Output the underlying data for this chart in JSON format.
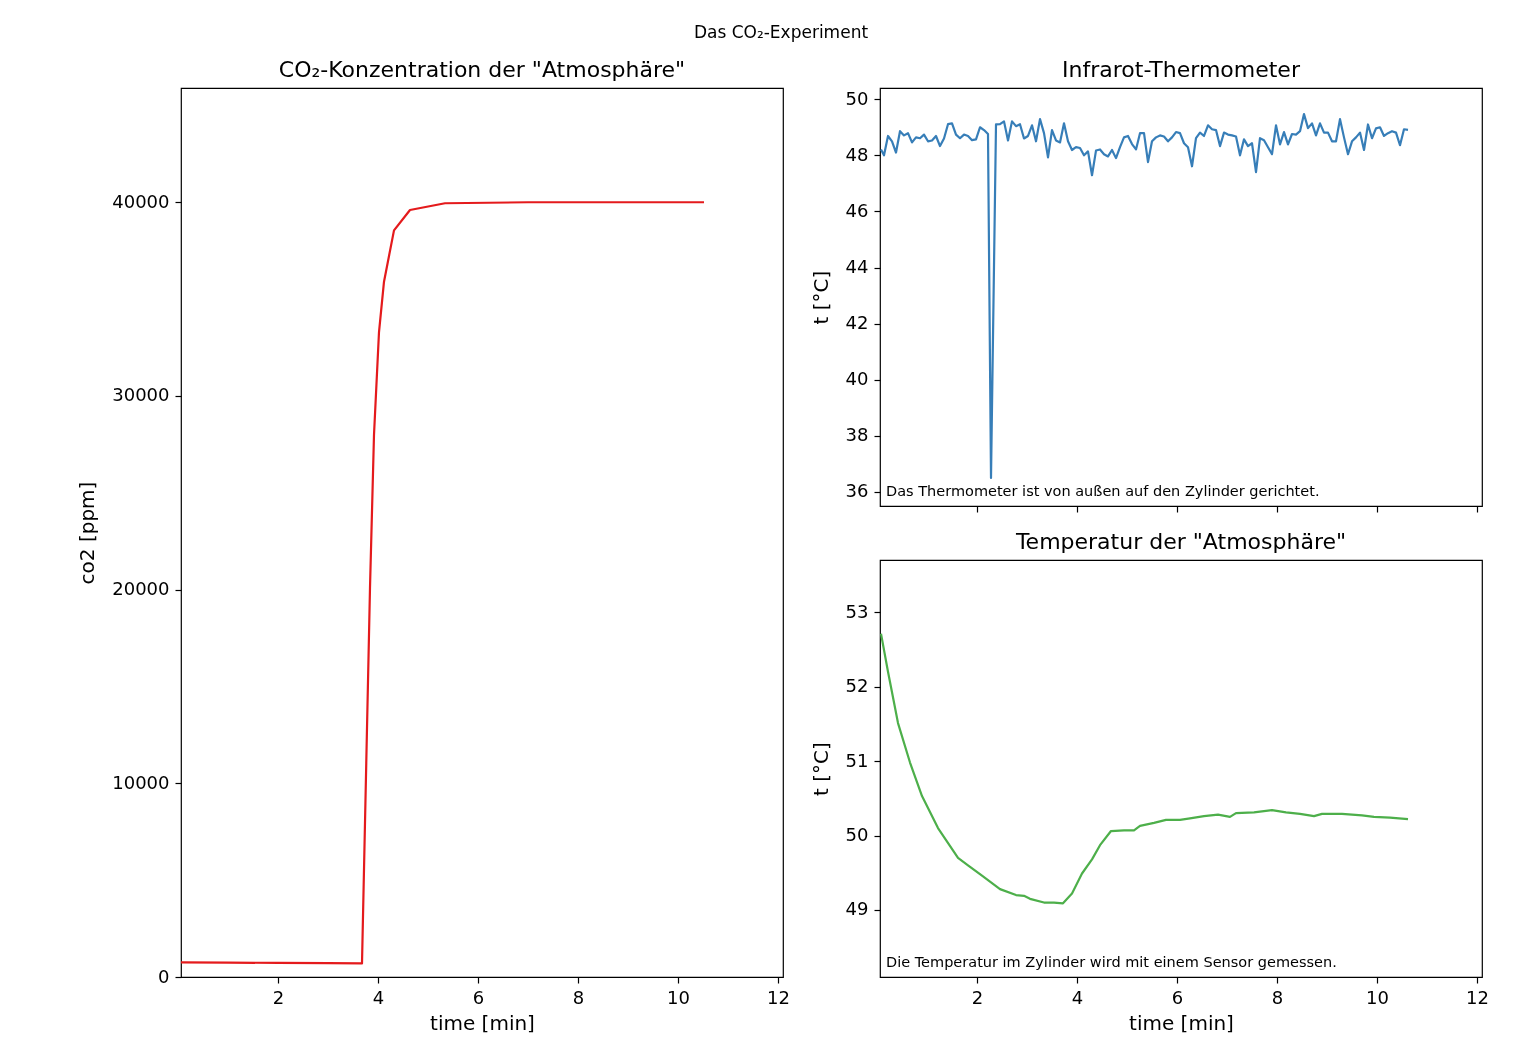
{
  "chart_data": [
    {
      "type": "other",
      "title": "Das CO₂-Experiment"
    },
    {
      "type": "line",
      "title": "CO₂-Konzentration der \"Atmosphäre\"",
      "xlabel": "time [min]",
      "ylabel": "co2 [ppm]",
      "x": [
        0.06,
        1,
        2,
        3,
        3.68,
        3.84,
        3.92,
        4.02,
        4.12,
        4.32,
        4.64,
        5.34,
        7,
        9,
        10.52
      ],
      "series": [
        {
          "color": "#e41a1c",
          "values": [
            750,
            740,
            730,
            720,
            700,
            20100,
            28000,
            33300,
            35900,
            38550,
            39600,
            39950,
            40000,
            40000,
            40000
          ]
        }
      ],
      "xlim": [
        0.06,
        12.1
      ],
      "xticks": [
        2,
        4,
        6,
        8,
        10,
        12
      ],
      "ylim": [
        0,
        45900
      ],
      "yticks": [
        0,
        10000,
        20000,
        30000,
        40000
      ]
    },
    {
      "type": "line",
      "title": "Infrarot-Thermometer",
      "ylabel": "t [°C]",
      "tick_labels": "y",
      "annotations": [
        "Das Thermometer ist von außen auf den Zylinder gerichtet."
      ],
      "x": [
        0.08,
        0.14,
        0.22,
        0.3,
        0.38,
        0.46,
        0.54,
        0.62,
        0.7,
        0.78,
        0.86,
        0.94,
        1.02,
        1.1,
        1.18,
        1.26,
        1.34,
        1.42,
        1.5,
        1.58,
        1.66,
        1.74,
        1.82,
        1.9,
        1.98,
        2.06,
        2.14,
        2.22,
        2.28,
        2.38,
        2.46,
        2.54,
        2.62,
        2.7,
        2.78,
        2.86,
        2.94,
        3.02,
        3.1,
        3.18,
        3.26,
        3.34,
        3.42,
        3.5,
        3.58,
        3.66,
        3.74,
        3.82,
        3.9,
        3.98,
        4.06,
        4.14,
        4.22,
        4.3,
        4.38,
        4.46,
        4.54,
        4.62,
        4.7,
        4.78,
        4.86,
        4.94,
        5.02,
        5.1,
        5.18,
        5.26,
        5.34,
        5.42,
        5.5,
        5.58,
        5.66,
        5.74,
        5.82,
        5.9,
        5.98,
        6.06,
        6.14,
        6.22,
        6.3,
        6.38,
        6.46,
        6.54,
        6.62,
        6.7,
        6.78,
        6.86,
        6.94,
        7.02,
        7.1,
        7.18,
        7.26,
        7.34,
        7.42,
        7.5,
        7.58,
        7.66,
        7.74,
        7.82,
        7.9,
        7.98,
        8.06,
        8.14,
        8.22,
        8.3,
        8.38,
        8.46,
        8.54,
        8.62,
        8.7,
        8.78,
        8.86,
        8.94,
        9.02,
        9.1,
        9.18,
        9.26,
        9.34,
        9.42,
        9.5,
        9.58,
        9.66,
        9.74,
        9.82,
        9.9,
        9.98,
        10.06,
        10.14,
        10.22,
        10.3,
        10.38,
        10.46,
        10.54,
        10.62
      ],
      "series": [
        {
          "color": "#377eb8",
          "values": [
            48.21,
            48.0,
            48.69,
            48.5,
            48.1,
            48.86,
            48.71,
            48.79,
            48.46,
            48.64,
            48.61,
            48.74,
            48.5,
            48.53,
            48.69,
            48.33,
            48.6,
            49.11,
            49.14,
            48.74,
            48.61,
            48.74,
            48.69,
            48.54,
            48.57,
            49.0,
            48.9,
            48.76,
            36.5,
            49.1,
            49.11,
            49.21,
            48.53,
            49.21,
            49.04,
            49.11,
            48.6,
            48.69,
            49.07,
            48.5,
            49.29,
            48.79,
            47.93,
            48.9,
            48.53,
            48.46,
            49.14,
            48.5,
            48.19,
            48.29,
            48.26,
            48.0,
            48.14,
            47.29,
            48.17,
            48.21,
            48.04,
            47.96,
            48.19,
            47.9,
            48.29,
            48.64,
            48.69,
            48.4,
            48.21,
            48.79,
            48.79,
            47.76,
            48.5,
            48.64,
            48.71,
            48.67,
            48.5,
            48.64,
            48.83,
            48.79,
            48.43,
            48.29,
            47.61,
            48.61,
            48.81,
            48.69,
            49.07,
            48.93,
            48.9,
            48.33,
            48.81,
            48.74,
            48.71,
            48.67,
            48.0,
            48.57,
            48.33,
            48.43,
            47.4,
            48.61,
            48.54,
            48.29,
            48.04,
            49.07,
            48.39,
            48.83,
            48.39,
            48.76,
            48.74,
            48.86,
            49.47,
            48.97,
            49.14,
            48.71,
            49.14,
            48.81,
            48.81,
            48.5,
            48.5,
            49.29,
            48.64,
            48.04,
            48.5,
            48.64,
            48.81,
            48.19,
            49.1,
            48.61,
            48.96,
            49.0,
            48.69,
            48.79,
            48.86,
            48.81,
            48.36,
            48.93,
            48.91
          ]
        }
      ],
      "xlim": [
        0.06,
        12.1
      ],
      "xticks": [
        2,
        4,
        6,
        8,
        10,
        12
      ],
      "ylim": [
        35.5,
        50.4
      ],
      "yticks": [
        36,
        38,
        40,
        42,
        44,
        46,
        48,
        50
      ]
    },
    {
      "type": "line",
      "title": "Temperatur der \"Atmosphäre\"",
      "xlabel": "time [min]",
      "ylabel": "t [°C]",
      "annotations": [
        "Die Temperatur im Zylinder wird mit einem Sensor gemessen."
      ],
      "x": [
        0.08,
        0.22,
        0.42,
        0.66,
        0.9,
        1.22,
        1.62,
        1.82,
        2.1,
        2.46,
        2.78,
        2.94,
        3.06,
        3.34,
        3.54,
        3.72,
        3.9,
        4.1,
        4.3,
        4.46,
        4.68,
        4.94,
        5.14,
        5.26,
        5.54,
        5.78,
        6.06,
        6.26,
        6.54,
        6.82,
        7.06,
        7.18,
        7.54,
        7.9,
        8.18,
        8.46,
        8.74,
        8.9,
        9.3,
        9.7,
        9.94,
        10.26,
        10.62
      ],
      "series": [
        {
          "color": "#4daf4a",
          "values": [
            52.71,
            52.2,
            51.51,
            50.98,
            50.53,
            50.1,
            49.7,
            49.6,
            49.46,
            49.28,
            49.2,
            49.19,
            49.15,
            49.1,
            49.1,
            49.09,
            49.22,
            49.49,
            49.68,
            49.87,
            50.06,
            50.07,
            50.07,
            50.13,
            50.17,
            50.21,
            50.21,
            50.23,
            50.26,
            50.28,
            50.25,
            50.3,
            50.31,
            50.34,
            50.31,
            50.29,
            50.26,
            50.29,
            50.29,
            50.27,
            50.25,
            50.24,
            50.22
          ]
        }
      ],
      "xlim": [
        0.06,
        12.1
      ],
      "xticks": [
        2,
        4,
        6,
        8,
        10,
        12
      ],
      "ylim": [
        48.1,
        53.7
      ],
      "yticks": [
        49,
        50,
        51,
        52,
        53
      ]
    }
  ]
}
